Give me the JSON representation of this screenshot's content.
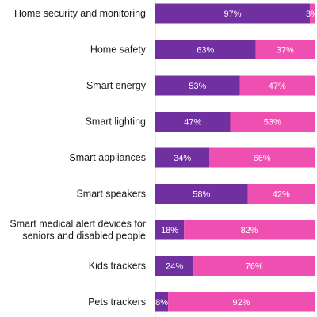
{
  "colors": {
    "series_a": "#7030A0",
    "series_b": "#EE4FB0",
    "axis": "#d9d9d9"
  },
  "chart_data": {
    "type": "bar",
    "orientation": "horizontal",
    "stacked": true,
    "title": "",
    "xlabel": "",
    "ylabel": "",
    "xlim": [
      0,
      100
    ],
    "grid": false,
    "legend": "none",
    "categories": [
      "Home security and monitoring",
      "Home safety",
      "Smart energy",
      "Smart lighting",
      "Smart appliances",
      "Smart speakers",
      "Smart medical alert devices for seniors and disabled people",
      "Kids trackers",
      "Pets trackers"
    ],
    "category_lines": [
      [
        "Home security and monitoring"
      ],
      [
        "Home safety"
      ],
      [
        "Smart energy"
      ],
      [
        "Smart lighting"
      ],
      [
        "Smart appliances"
      ],
      [
        "Smart speakers"
      ],
      [
        "Smart medical alert devices for",
        "seniors and disabled people"
      ],
      [
        "Kids trackers"
      ],
      [
        "Pets trackers"
      ]
    ],
    "series": [
      {
        "values": [
          97,
          63,
          53,
          47,
          34,
          58,
          18,
          24,
          8
        ],
        "labels": [
          "97%",
          "63%",
          "53%",
          "47%",
          "34%",
          "58%",
          "18%",
          "24%",
          "8%"
        ]
      },
      {
        "values": [
          3,
          37,
          47,
          53,
          66,
          42,
          82,
          76,
          92
        ],
        "labels": [
          "3%",
          "37%",
          "47%",
          "53%",
          "66%",
          "42%",
          "82%",
          "76%",
          "92%"
        ]
      }
    ]
  }
}
